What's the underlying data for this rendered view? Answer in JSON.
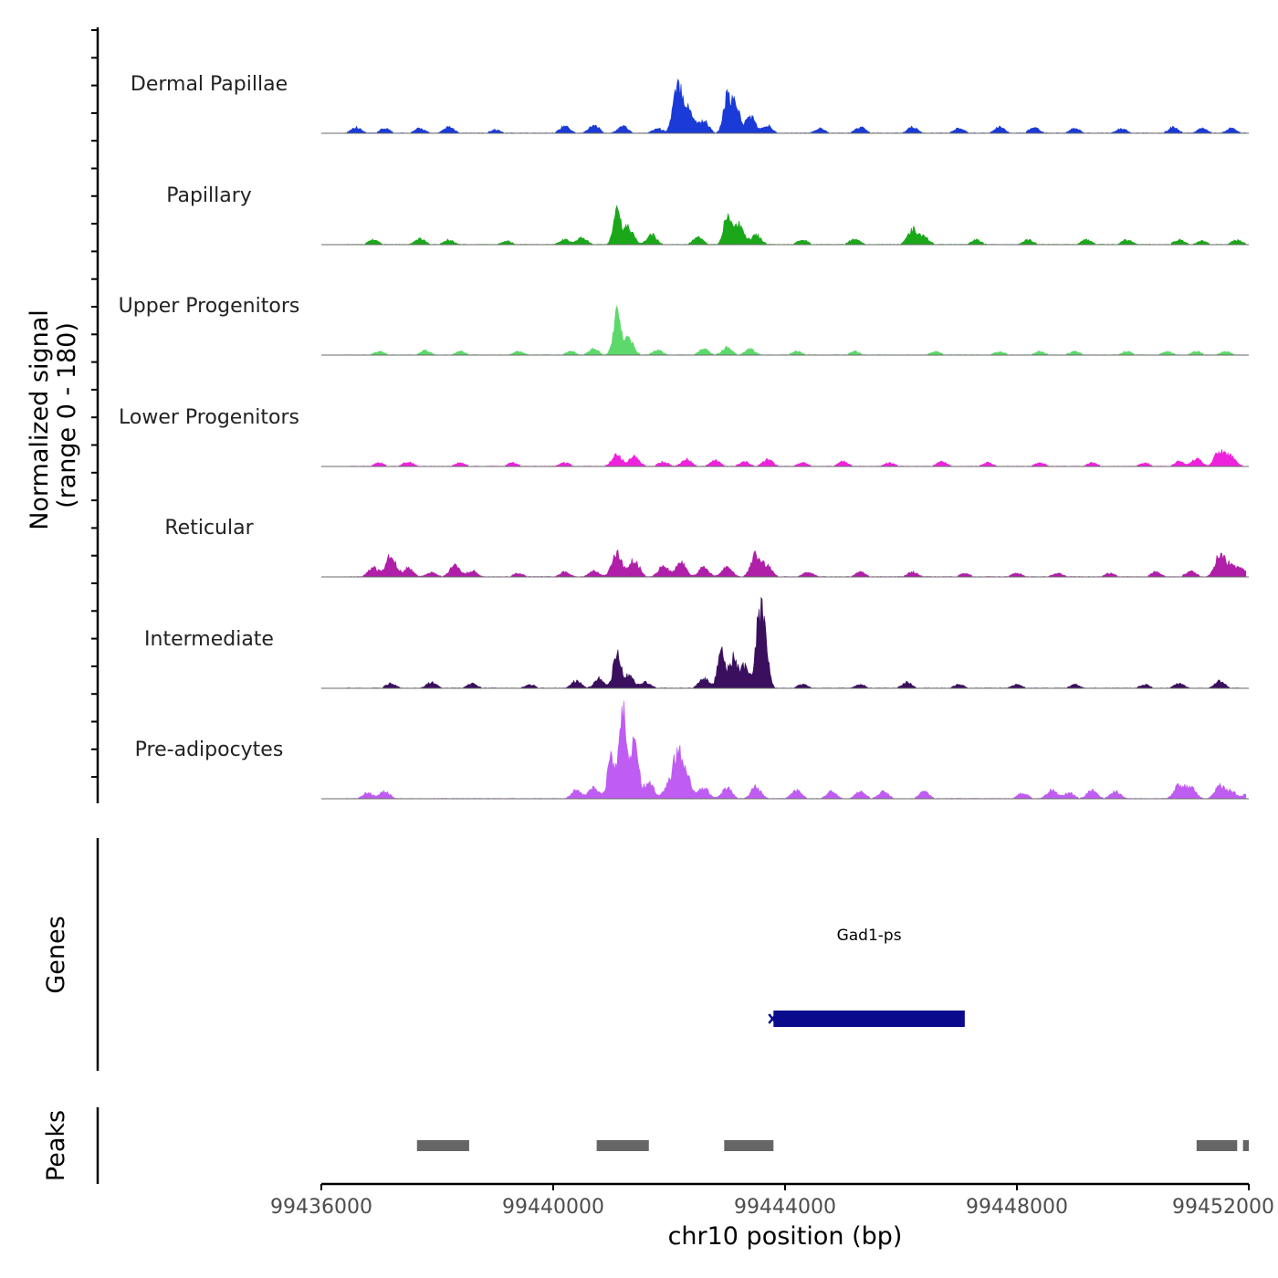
{
  "chart_data": {
    "type": "area",
    "title": "",
    "xlabel": "chr10 position (bp)",
    "ylabel_line1": "Normalized signal",
    "ylabel_line2": "(range 0 - 180)",
    "xlim": [
      99436000,
      99452000
    ],
    "xticks": [
      {
        "value": 99436000,
        "label": "99436000"
      },
      {
        "value": 99440000,
        "label": "99440000"
      },
      {
        "value": 99444000,
        "label": "99444000"
      },
      {
        "value": 99448000,
        "label": "99448000"
      },
      {
        "value": 99452000,
        "label": "99452000"
      }
    ],
    "signal_range": [
      0,
      180
    ],
    "tracks": [
      {
        "name": "Dermal Papillae",
        "color": "#1a3bd8",
        "peaks": [
          [
            99436600,
            5
          ],
          [
            99437100,
            4
          ],
          [
            99437700,
            4
          ],
          [
            99438200,
            5
          ],
          [
            99439000,
            3
          ],
          [
            99440200,
            6
          ],
          [
            99440700,
            7
          ],
          [
            99441200,
            6
          ],
          [
            99441800,
            4
          ],
          [
            99442100,
            22
          ],
          [
            99442200,
            28
          ],
          [
            99442350,
            18
          ],
          [
            99442600,
            10
          ],
          [
            99443000,
            28
          ],
          [
            99443150,
            24
          ],
          [
            99443400,
            14
          ],
          [
            99443700,
            6
          ],
          [
            99444600,
            4
          ],
          [
            99445300,
            5
          ],
          [
            99446200,
            5
          ],
          [
            99447000,
            4
          ],
          [
            99447700,
            5
          ],
          [
            99448300,
            5
          ],
          [
            99449000,
            4
          ],
          [
            99449800,
            4
          ],
          [
            99450700,
            5
          ],
          [
            99451200,
            4
          ],
          [
            99451700,
            4
          ]
        ]
      },
      {
        "name": "Papillary",
        "color": "#1aa81a",
        "peaks": [
          [
            99436900,
            4
          ],
          [
            99437700,
            5
          ],
          [
            99438200,
            4
          ],
          [
            99439200,
            3
          ],
          [
            99440200,
            4
          ],
          [
            99440500,
            6
          ],
          [
            99441100,
            26
          ],
          [
            99441300,
            14
          ],
          [
            99441700,
            8
          ],
          [
            99442500,
            6
          ],
          [
            99443000,
            22
          ],
          [
            99443200,
            16
          ],
          [
            99443500,
            8
          ],
          [
            99444300,
            4
          ],
          [
            99445200,
            5
          ],
          [
            99446200,
            12
          ],
          [
            99446400,
            6
          ],
          [
            99447300,
            4
          ],
          [
            99448200,
            4
          ],
          [
            99449200,
            4
          ],
          [
            99449900,
            4
          ],
          [
            99450800,
            4
          ],
          [
            99451200,
            3
          ],
          [
            99451800,
            4
          ]
        ]
      },
      {
        "name": "Upper Progenitors",
        "color": "#5cd96a",
        "peaks": [
          [
            99437000,
            3
          ],
          [
            99437800,
            4
          ],
          [
            99438400,
            3
          ],
          [
            99439400,
            3
          ],
          [
            99440300,
            3
          ],
          [
            99440700,
            5
          ],
          [
            99441100,
            32
          ],
          [
            99441300,
            14
          ],
          [
            99441800,
            4
          ],
          [
            99442600,
            5
          ],
          [
            99443000,
            6
          ],
          [
            99443400,
            5
          ],
          [
            99444200,
            3
          ],
          [
            99445200,
            3
          ],
          [
            99446600,
            3
          ],
          [
            99447700,
            3
          ],
          [
            99448400,
            3
          ],
          [
            99449000,
            3
          ],
          [
            99449900,
            3
          ],
          [
            99450600,
            3
          ],
          [
            99451100,
            3
          ],
          [
            99451600,
            3
          ]
        ]
      },
      {
        "name": "Lower Progenitors",
        "color": "#ee22dc",
        "peaks": [
          [
            99437000,
            3
          ],
          [
            99437500,
            4
          ],
          [
            99438400,
            3
          ],
          [
            99439300,
            3
          ],
          [
            99440200,
            3
          ],
          [
            99441100,
            10
          ],
          [
            99441400,
            8
          ],
          [
            99441900,
            4
          ],
          [
            99442300,
            6
          ],
          [
            99442800,
            5
          ],
          [
            99443300,
            4
          ],
          [
            99443700,
            6
          ],
          [
            99444300,
            3
          ],
          [
            99445000,
            4
          ],
          [
            99445800,
            3
          ],
          [
            99446700,
            4
          ],
          [
            99447500,
            3
          ],
          [
            99448400,
            3
          ],
          [
            99449300,
            3
          ],
          [
            99450200,
            3
          ],
          [
            99450800,
            4
          ],
          [
            99451100,
            6
          ],
          [
            99451500,
            13
          ],
          [
            99451700,
            8
          ]
        ]
      },
      {
        "name": "Reticular",
        "color": "#b01fa8",
        "peaks": [
          [
            99436900,
            8
          ],
          [
            99437200,
            18
          ],
          [
            99437500,
            7
          ],
          [
            99437900,
            4
          ],
          [
            99438300,
            9
          ],
          [
            99438600,
            5
          ],
          [
            99439400,
            3
          ],
          [
            99440200,
            4
          ],
          [
            99440700,
            5
          ],
          [
            99441100,
            20
          ],
          [
            99441400,
            14
          ],
          [
            99441900,
            9
          ],
          [
            99442200,
            12
          ],
          [
            99442600,
            8
          ],
          [
            99443000,
            8
          ],
          [
            99443500,
            18
          ],
          [
            99443700,
            8
          ],
          [
            99444400,
            4
          ],
          [
            99445300,
            4
          ],
          [
            99446200,
            4
          ],
          [
            99447100,
            3
          ],
          [
            99448000,
            3
          ],
          [
            99448700,
            3
          ],
          [
            99449600,
            3
          ],
          [
            99450400,
            4
          ],
          [
            99451000,
            5
          ],
          [
            99451500,
            18
          ],
          [
            99451700,
            9
          ],
          [
            99451900,
            6
          ]
        ]
      },
      {
        "name": "Intermediate",
        "color": "#3a0f5e",
        "peaks": [
          [
            99437200,
            4
          ],
          [
            99437900,
            5
          ],
          [
            99438600,
            4
          ],
          [
            99439600,
            3
          ],
          [
            99440400,
            6
          ],
          [
            99440800,
            8
          ],
          [
            99441100,
            28
          ],
          [
            99441300,
            10
          ],
          [
            99441600,
            5
          ],
          [
            99442600,
            8
          ],
          [
            99442900,
            30
          ],
          [
            99443100,
            24
          ],
          [
            99443300,
            18
          ],
          [
            99443550,
            50
          ],
          [
            99443650,
            34
          ],
          [
            99444300,
            3
          ],
          [
            99445300,
            3
          ],
          [
            99446100,
            5
          ],
          [
            99447000,
            3
          ],
          [
            99448000,
            3
          ],
          [
            99449000,
            3
          ],
          [
            99450200,
            3
          ],
          [
            99450800,
            4
          ],
          [
            99451500,
            6
          ]
        ]
      },
      {
        "name": "Pre-adipocytes",
        "color": "#bf5cf2",
        "peaks": [
          [
            99436800,
            5
          ],
          [
            99437100,
            6
          ],
          [
            99440400,
            7
          ],
          [
            99440700,
            9
          ],
          [
            99441000,
            32
          ],
          [
            99441200,
            78
          ],
          [
            99441400,
            52
          ],
          [
            99441650,
            14
          ],
          [
            99442000,
            12
          ],
          [
            99442150,
            38
          ],
          [
            99442300,
            18
          ],
          [
            99442600,
            9
          ],
          [
            99443000,
            9
          ],
          [
            99443500,
            10
          ],
          [
            99444200,
            7
          ],
          [
            99444800,
            6
          ],
          [
            99445300,
            6
          ],
          [
            99445700,
            6
          ],
          [
            99446400,
            6
          ],
          [
            99448100,
            5
          ],
          [
            99448600,
            7
          ],
          [
            99448900,
            5
          ],
          [
            99449300,
            7
          ],
          [
            99449700,
            6
          ],
          [
            99450800,
            11
          ],
          [
            99451000,
            9
          ],
          [
            99451500,
            10
          ],
          [
            99451700,
            6
          ],
          [
            99452000,
            5
          ]
        ]
      }
    ],
    "genes": [
      {
        "name": "Gad1-ps",
        "start": 99443800,
        "end": 99447100,
        "color": "#0a0a8c",
        "strand": "-"
      }
    ],
    "genes_label": "Genes",
    "peaks_label": "Peaks",
    "peaks": [
      [
        99437650,
        99438550
      ],
      [
        99440750,
        99441650
      ],
      [
        99442950,
        99443800
      ],
      [
        99451100,
        99451800
      ],
      [
        99451900,
        99452000
      ]
    ],
    "peak_color": "#666666"
  }
}
